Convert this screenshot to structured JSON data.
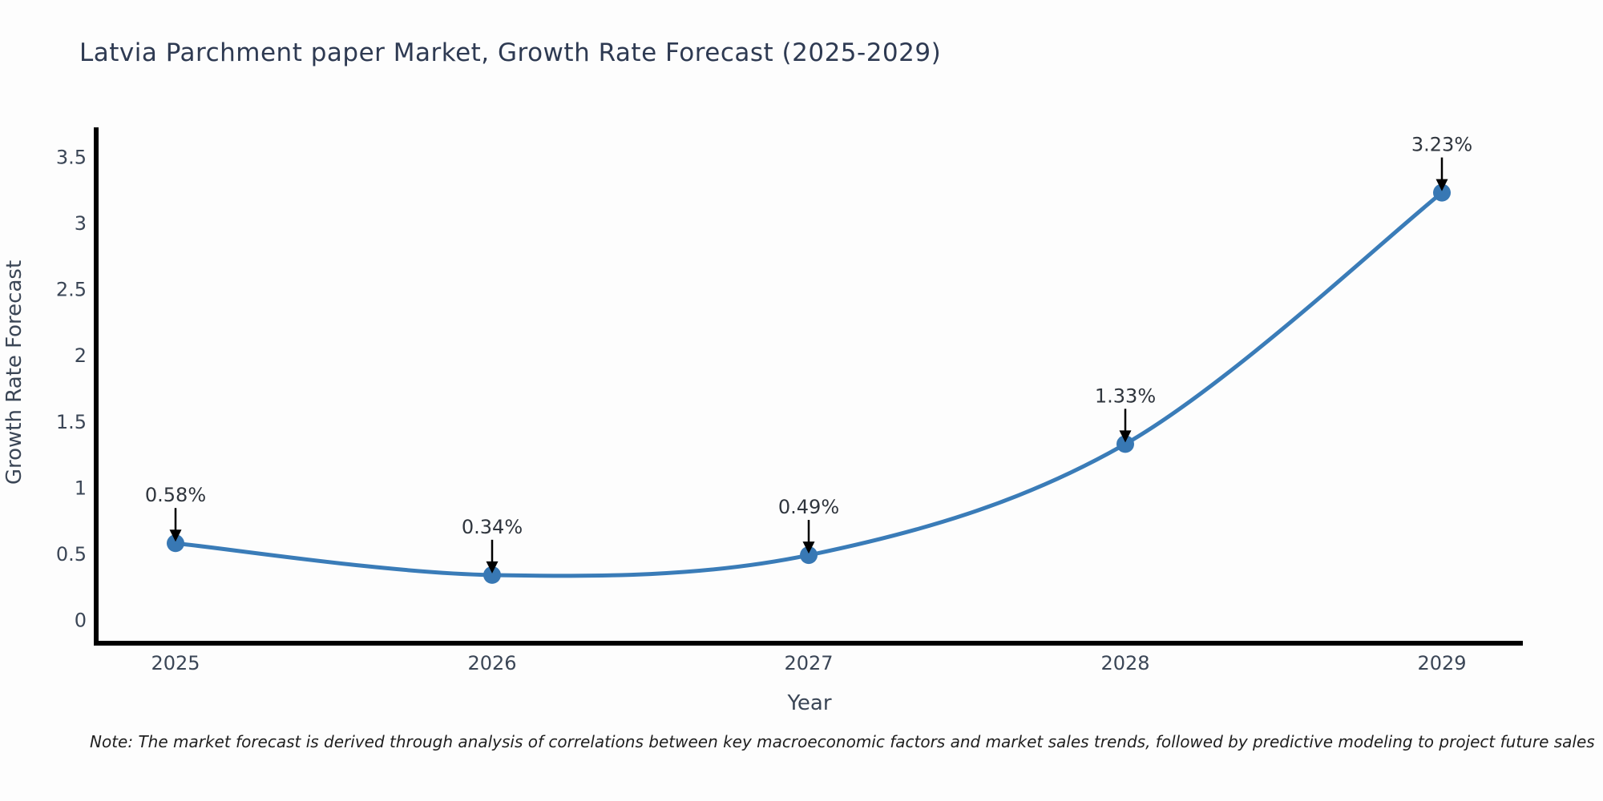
{
  "page": {
    "background_color": "#fdfdfd"
  },
  "header": {
    "title": "Latvia Parchment paper Market, Growth Rate Forecast (2025-2029)"
  },
  "note": {
    "text": "Note: The market forecast is derived through analysis of correlations between key macroeconomic factors and market sales trends, followed by predictive modeling to project future sales"
  },
  "chart_data": {
    "type": "line",
    "title": "Latvia Parchment paper Market, Growth Rate Forecast (2025-2029)",
    "xlabel": "Year",
    "ylabel": "Growth Rate Forecast",
    "categories": [
      "2025",
      "2026",
      "2027",
      "2028",
      "2029"
    ],
    "x": [
      2025,
      2026,
      2027,
      2028,
      2029
    ],
    "values": [
      0.58,
      0.34,
      0.49,
      1.33,
      3.23
    ],
    "point_labels": [
      "0.58%",
      "0.34%",
      "0.49%",
      "1.33%",
      "3.23%"
    ],
    "y_ticks": [
      0,
      0.5,
      1,
      1.5,
      2,
      2.5,
      3,
      3.5
    ],
    "y_tick_labels": [
      "0",
      "0.5",
      "1",
      "1.5",
      "2",
      "2.5",
      "3",
      "3.5"
    ],
    "ylim": [
      0,
      3.5
    ],
    "grid": false,
    "legend": false,
    "smooth": true,
    "line_color": "#3a7cb8",
    "marker_color": "#3878b4",
    "axis_color": "#000000",
    "annotation_arrow_color": "#000000"
  }
}
